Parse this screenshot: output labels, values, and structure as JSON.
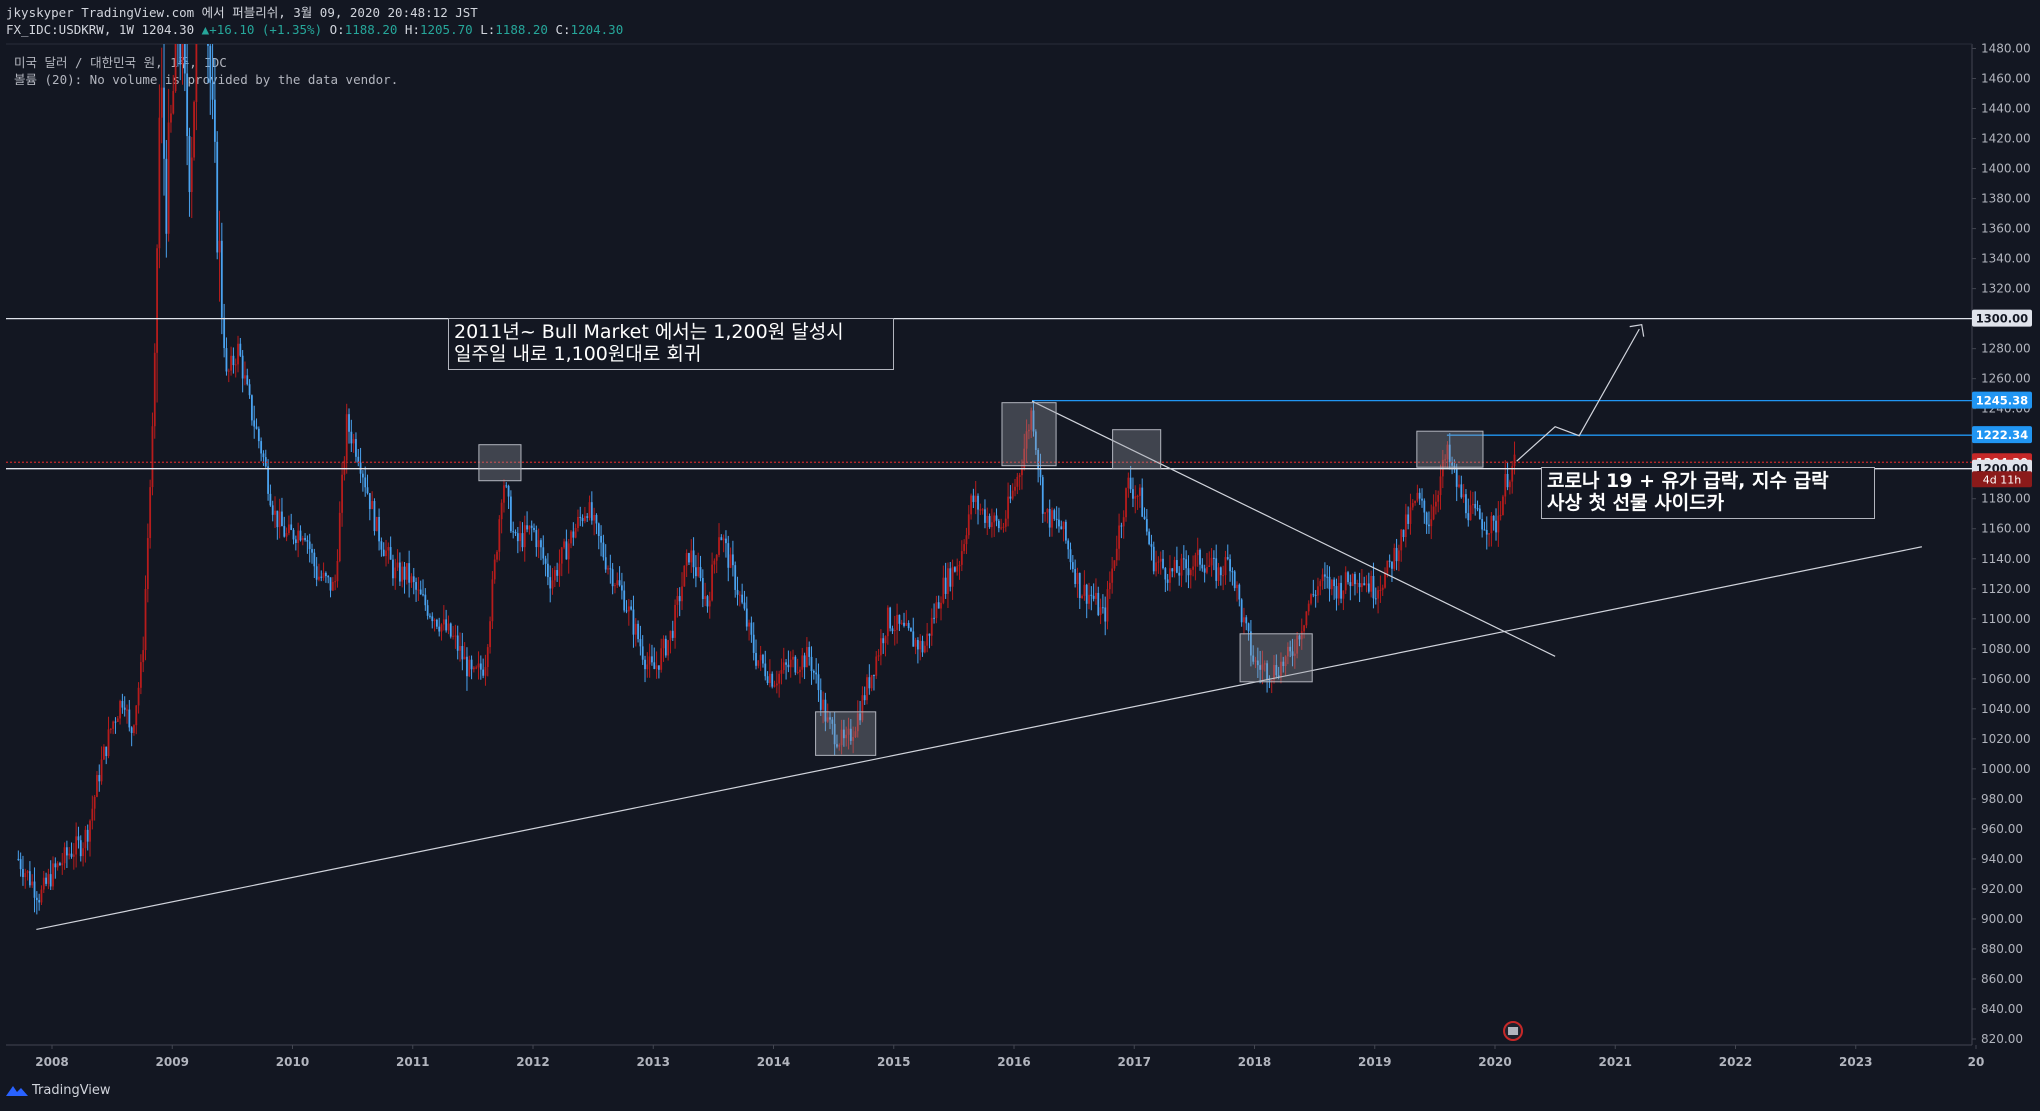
{
  "header": {
    "line1": "jkyskyper TradingView.com 에서 퍼블리쉬, 3월 09, 2020 20:48:12 JST",
    "symbol": "FX_IDC:USDKRW, 1W 1204.30",
    "change": "+16.10 (+1.35%)",
    "o_label": "O:",
    "o_val": "1188.20",
    "h_label": "H:",
    "h_val": "1205.70",
    "l_label": "L:",
    "l_val": "1188.20",
    "c_label": "C:",
    "c_val": "1204.30"
  },
  "legend": {
    "line1": "미국 달러 / 대한민국 원, 1주, IDC",
    "line2": "볼륨 (20): No volume is provided by the data vendor."
  },
  "annotations": {
    "note1": "2011년~ Bull Market 에서는 1,200원 달성시\n일주일 내로 1,100원대로 회귀",
    "note2": "코로나 19 + 유가 급락, 지수 급락\n사상 첫 선물 사이드카"
  },
  "footer": {
    "brand": "TradingView"
  },
  "colors": {
    "background": "#131722",
    "up": "#b71c1c",
    "down": "#4aa3f0",
    "blue_line": "#2196f3",
    "current": "#c62828",
    "white": "#e0e3eb"
  },
  "chart_data": {
    "type": "candlestick",
    "symbol": "FX_IDC:USDKRW",
    "interval": "1W",
    "x_ticks": [
      "2008",
      "2009",
      "2010",
      "2011",
      "2012",
      "2013",
      "2014",
      "2015",
      "2016",
      "2017",
      "2018",
      "2019",
      "2020",
      "2021",
      "2022",
      "2023",
      "20"
    ],
    "y_ticks": [
      820,
      840,
      860,
      880,
      900,
      920,
      940,
      960,
      980,
      1000,
      1020,
      1040,
      1060,
      1080,
      1100,
      1120,
      1140,
      1160,
      1180,
      1200,
      1220,
      1240,
      1260,
      1280,
      1300,
      1320,
      1340,
      1360,
      1380,
      1400,
      1420,
      1440,
      1460,
      1480
    ],
    "ylim": [
      816,
      1483
    ],
    "price_labels": [
      {
        "value": 1300.0,
        "text": "1300.00",
        "style": "white"
      },
      {
        "value": 1245.38,
        "text": "1245.38",
        "style": "blue"
      },
      {
        "value": 1222.34,
        "text": "1222.34",
        "style": "blue"
      },
      {
        "value": 1204.3,
        "text": "1204.30",
        "style": "red"
      },
      {
        "value": 1200.0,
        "text": "1200.00",
        "style": "white"
      }
    ],
    "countdown": "4d 11h",
    "path_points": [
      [
        2007.72,
        940
      ],
      [
        2007.9,
        915
      ],
      [
        2008.0,
        930
      ],
      [
        2008.15,
        945
      ],
      [
        2008.25,
        950
      ],
      [
        2008.3,
        960
      ],
      [
        2008.4,
        1000
      ],
      [
        2008.5,
        1030
      ],
      [
        2008.6,
        1050
      ],
      [
        2008.65,
        1020
      ],
      [
        2008.75,
        1070
      ],
      [
        2008.85,
        1250
      ],
      [
        2008.9,
        1460
      ],
      [
        2008.95,
        1380
      ],
      [
        2009.05,
        1500
      ],
      [
        2009.15,
        1400
      ],
      [
        2009.25,
        1570
      ],
      [
        2009.35,
        1400
      ],
      [
        2009.45,
        1260
      ],
      [
        2009.55,
        1280
      ],
      [
        2009.65,
        1240
      ],
      [
        2009.75,
        1210
      ],
      [
        2009.85,
        1170
      ],
      [
        2009.95,
        1155
      ],
      [
        2010.1,
        1160
      ],
      [
        2010.2,
        1130
      ],
      [
        2010.35,
        1120
      ],
      [
        2010.45,
        1230
      ],
      [
        2010.55,
        1210
      ],
      [
        2010.7,
        1160
      ],
      [
        2010.85,
        1130
      ],
      [
        2010.95,
        1130
      ],
      [
        2011.05,
        1115
      ],
      [
        2011.2,
        1100
      ],
      [
        2011.35,
        1085
      ],
      [
        2011.5,
        1060
      ],
      [
        2011.6,
        1070
      ],
      [
        2011.7,
        1150
      ],
      [
        2011.75,
        1195
      ],
      [
        2011.85,
        1150
      ],
      [
        2012.0,
        1160
      ],
      [
        2012.15,
        1125
      ],
      [
        2012.35,
        1160
      ],
      [
        2012.45,
        1175
      ],
      [
        2012.6,
        1140
      ],
      [
        2012.75,
        1115
      ],
      [
        2012.95,
        1070
      ],
      [
        2013.0,
        1065
      ],
      [
        2013.15,
        1090
      ],
      [
        2013.3,
        1145
      ],
      [
        2013.45,
        1110
      ],
      [
        2013.55,
        1160
      ],
      [
        2013.7,
        1120
      ],
      [
        2013.85,
        1075
      ],
      [
        2014.0,
        1060
      ],
      [
        2014.15,
        1070
      ],
      [
        2014.3,
        1075
      ],
      [
        2014.45,
        1030
      ],
      [
        2014.6,
        1015
      ],
      [
        2014.7,
        1035
      ],
      [
        2014.8,
        1060
      ],
      [
        2014.95,
        1100
      ],
      [
        2015.1,
        1090
      ],
      [
        2015.25,
        1080
      ],
      [
        2015.4,
        1120
      ],
      [
        2015.55,
        1140
      ],
      [
        2015.65,
        1180
      ],
      [
        2015.75,
        1170
      ],
      [
        2015.9,
        1160
      ],
      [
        2016.05,
        1200
      ],
      [
        2016.15,
        1240
      ],
      [
        2016.25,
        1170
      ],
      [
        2016.4,
        1160
      ],
      [
        2016.55,
        1120
      ],
      [
        2016.65,
        1115
      ],
      [
        2016.75,
        1100
      ],
      [
        2016.85,
        1150
      ],
      [
        2016.95,
        1190
      ],
      [
        2017.05,
        1180
      ],
      [
        2017.15,
        1140
      ],
      [
        2017.3,
        1130
      ],
      [
        2017.45,
        1135
      ],
      [
        2017.55,
        1140
      ],
      [
        2017.7,
        1130
      ],
      [
        2017.8,
        1140
      ],
      [
        2017.9,
        1100
      ],
      [
        2018.0,
        1070
      ],
      [
        2018.15,
        1065
      ],
      [
        2018.3,
        1075
      ],
      [
        2018.45,
        1110
      ],
      [
        2018.55,
        1125
      ],
      [
        2018.7,
        1120
      ],
      [
        2018.85,
        1130
      ],
      [
        2019.0,
        1120
      ],
      [
        2019.1,
        1130
      ],
      [
        2019.2,
        1150
      ],
      [
        2019.35,
        1180
      ],
      [
        2019.45,
        1165
      ],
      [
        2019.6,
        1210
      ],
      [
        2019.7,
        1185
      ],
      [
        2019.8,
        1170
      ],
      [
        2019.9,
        1165
      ],
      [
        2020.0,
        1160
      ],
      [
        2020.1,
        1195
      ],
      [
        2020.18,
        1204
      ]
    ]
  }
}
